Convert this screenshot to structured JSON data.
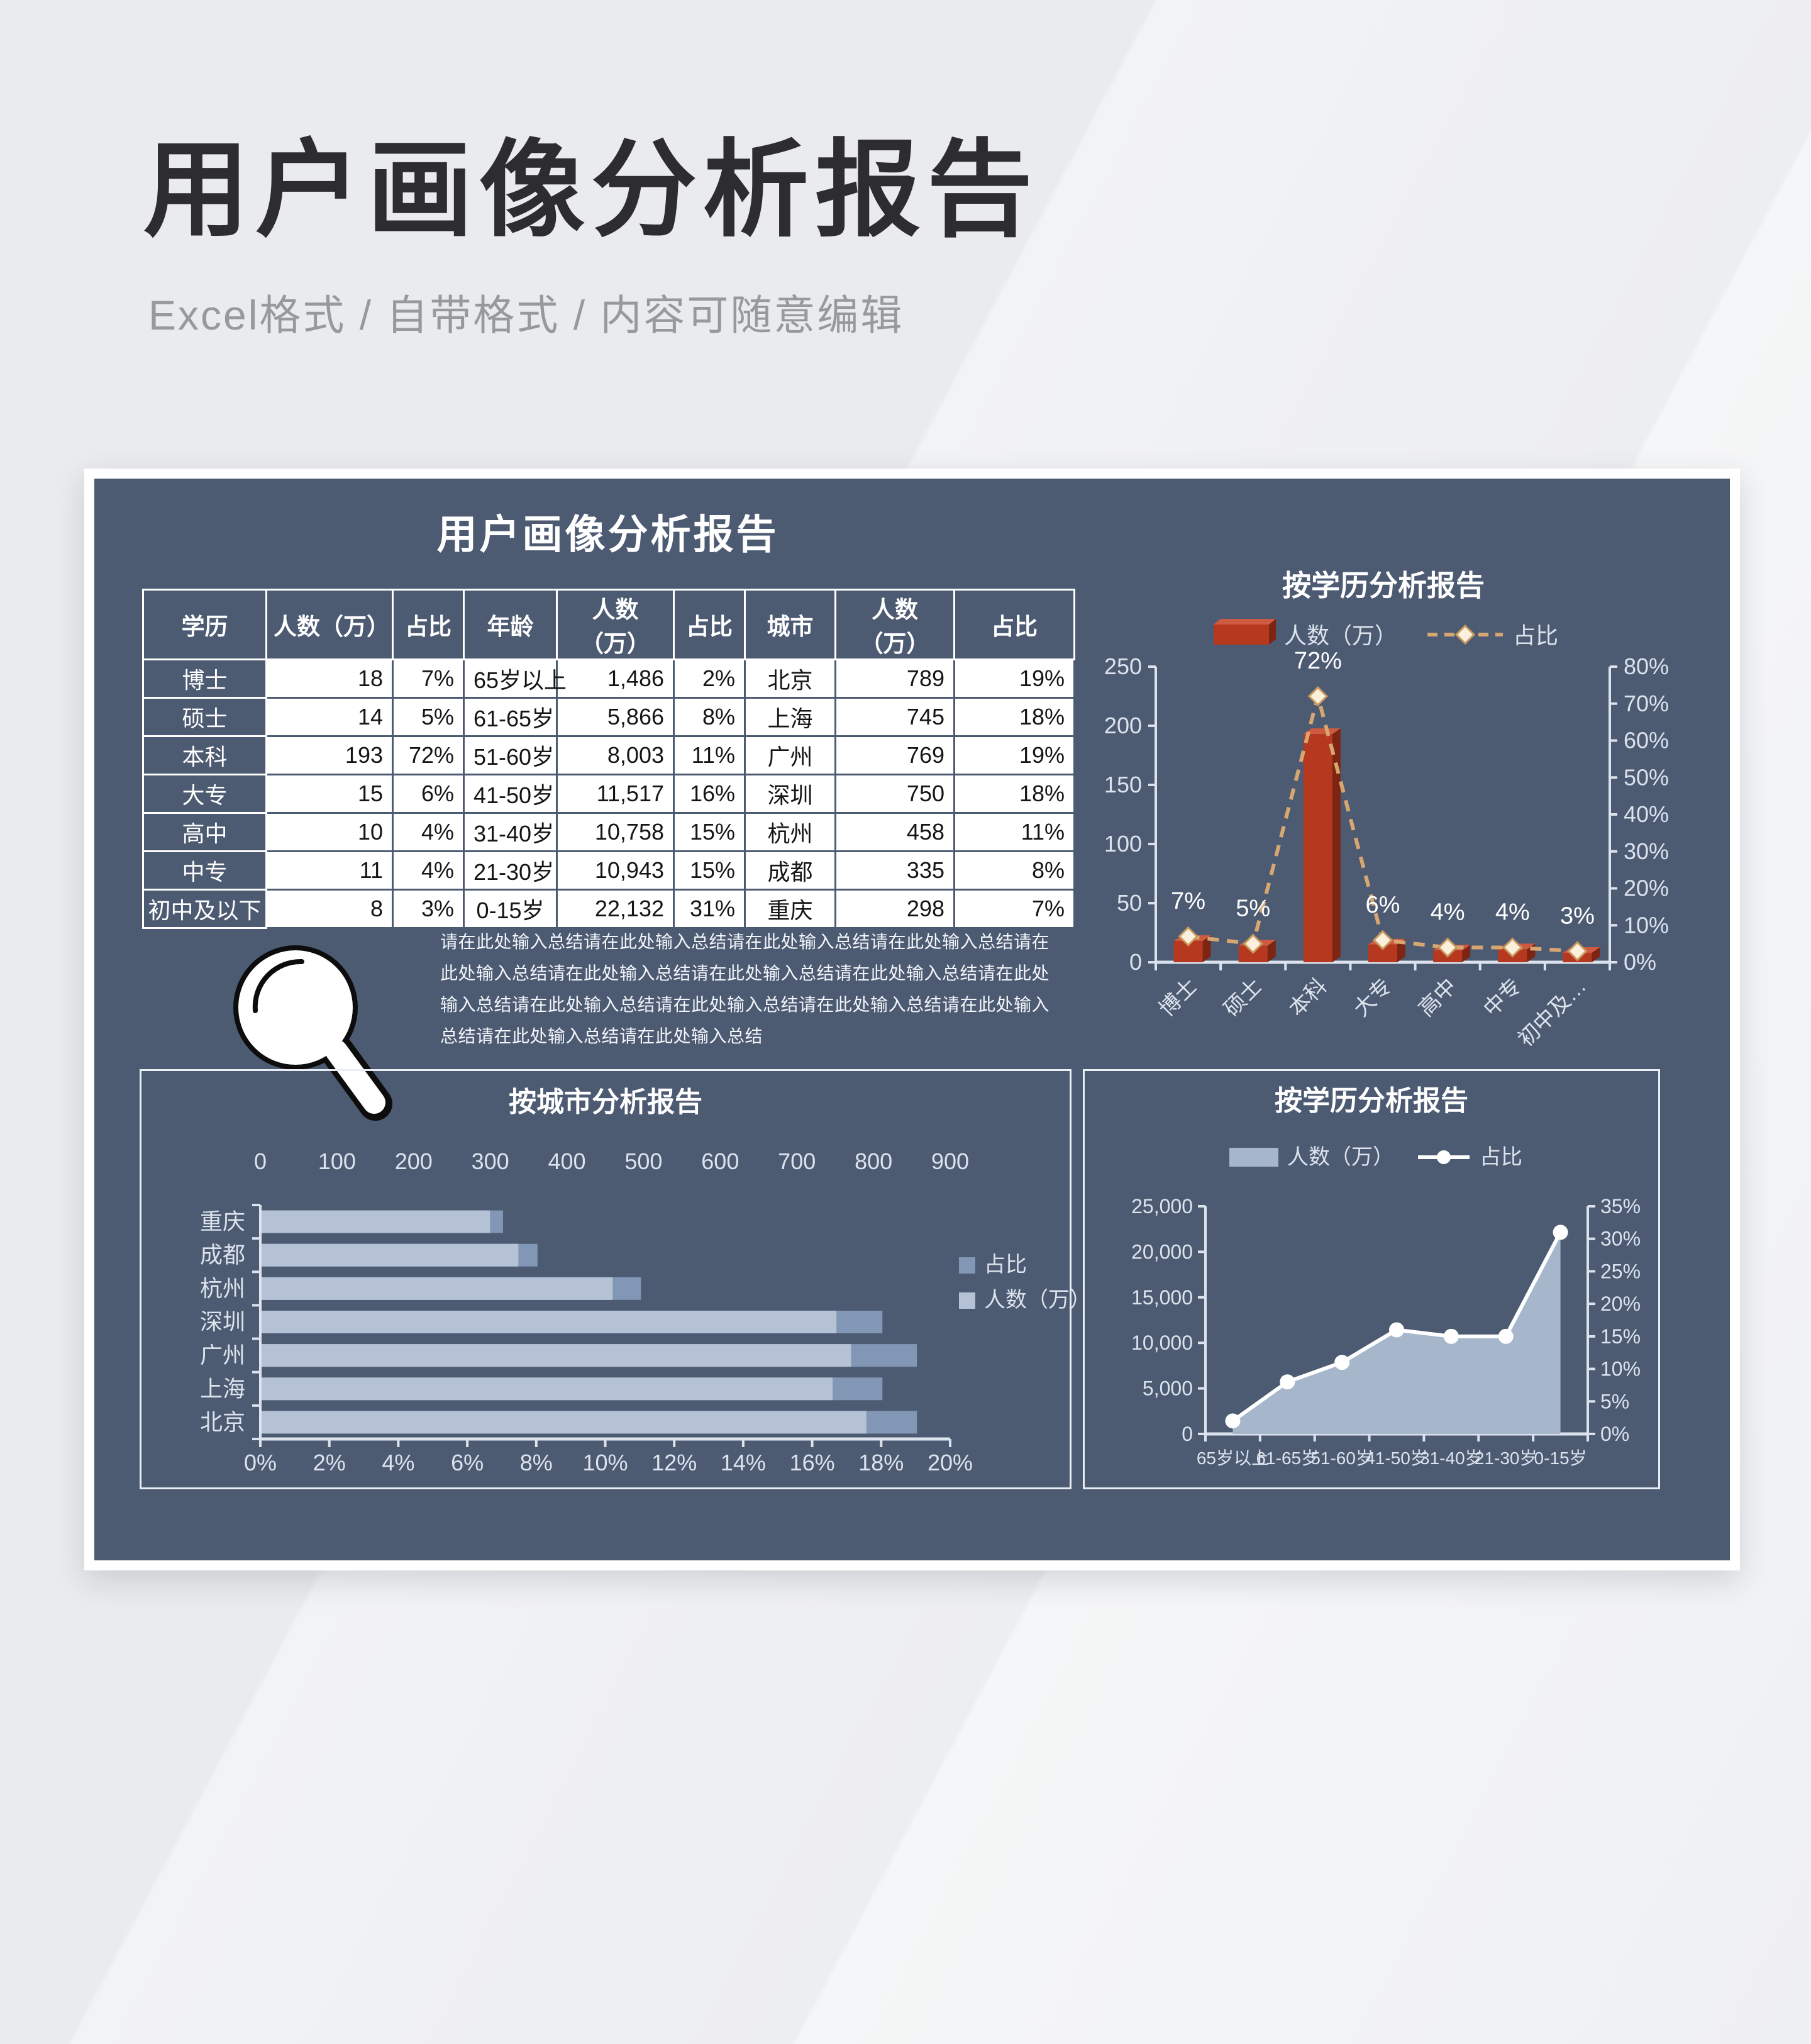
{
  "header": {
    "title": "用户画像分析报告",
    "subtitle": "Excel格式 / 自带格式 / 内容可随意编辑"
  },
  "panel": {
    "title": "用户画像分析报告",
    "summary": "请在此处输入总结请在此处输入总结请在此处输入总结请在此处输入总结请在此处输入总结请在此处输入总结请在此处输入总结请在此处输入总结请在此处输入总结请在此处输入总结请在此处输入总结请在此处输入总结请在此处输入总结请在此处输入总结请在此处输入总结",
    "summary_icon": "magnifier-icon"
  },
  "table": {
    "headers": [
      "学历",
      "人数（万）",
      "占比",
      "年龄",
      "人数（万）",
      "占比",
      "城市",
      "人数（万）",
      "占比"
    ],
    "rows": [
      [
        "博士",
        "18",
        "7%",
        "65岁以上",
        "1,486",
        "2%",
        "北京",
        "789",
        "19%"
      ],
      [
        "硕士",
        "14",
        "5%",
        "61-65岁",
        "5,866",
        "8%",
        "上海",
        "745",
        "18%"
      ],
      [
        "本科",
        "193",
        "72%",
        "51-60岁",
        "8,003",
        "11%",
        "广州",
        "769",
        "19%"
      ],
      [
        "大专",
        "15",
        "6%",
        "41-50岁",
        "11,517",
        "16%",
        "深圳",
        "750",
        "18%"
      ],
      [
        "高中",
        "10",
        "4%",
        "31-40岁",
        "10,758",
        "15%",
        "杭州",
        "458",
        "11%"
      ],
      [
        "中专",
        "11",
        "4%",
        "21-30岁",
        "10,943",
        "15%",
        "成都",
        "335",
        "8%"
      ],
      [
        "初中及以下",
        "8",
        "3%",
        "0-15岁",
        "22,132",
        "31%",
        "重庆",
        "298",
        "7%"
      ]
    ]
  },
  "colors": {
    "panel": "#4c5a72",
    "bar_red": "#b5381f",
    "bar_red_side": "#7d2412",
    "bar_red_top": "#ce5b41",
    "line_tan": "#d8a671",
    "diamond_fill": "#faf0dc",
    "diamond_stroke": "#c89a5e",
    "bar_light": "#b5c2d5",
    "bar_dark": "#8297b5",
    "area_fill": "#a6b6cb",
    "line_white": "#ffffff",
    "axis_text": "#dce3ed",
    "title_text": "#ffffff"
  },
  "chart_data": [
    {
      "id": "edu_combo",
      "type": "bar",
      "subtype": "bar+line combo, dual axis",
      "title": "按学历分析报告",
      "categories": [
        "博士",
        "硕士",
        "本科",
        "大专",
        "高中",
        "中专",
        "初中及…"
      ],
      "series": [
        {
          "name": "人数（万）",
          "chart": "bar",
          "axis": "left",
          "values": [
            18,
            14,
            193,
            15,
            10,
            11,
            8
          ]
        },
        {
          "name": "占比",
          "chart": "line",
          "axis": "right",
          "values": [
            7,
            5,
            72,
            6,
            4,
            4,
            3
          ],
          "labels": [
            "7%",
            "5%",
            "72%",
            "6%",
            "4%",
            "4%",
            "3%"
          ]
        }
      ],
      "left_axis": {
        "min": 0,
        "max": 250,
        "ticks": [
          "0",
          "50",
          "100",
          "150",
          "200",
          "250"
        ]
      },
      "right_axis": {
        "min": 0,
        "max": 80,
        "ticks": [
          "0%",
          "10%",
          "20%",
          "30%",
          "40%",
          "50%",
          "60%",
          "70%",
          "80%"
        ]
      },
      "legend_position": "top",
      "grid": false
    },
    {
      "id": "city_bars",
      "type": "bar",
      "subtype": "horizontal bars, dual axis",
      "title": "按城市分析报告",
      "categories": [
        "重庆",
        "成都",
        "杭州",
        "深圳",
        "广州",
        "上海",
        "北京"
      ],
      "series": [
        {
          "name": "占比",
          "axis": "bottom",
          "values": [
            7,
            8,
            11,
            18,
            19,
            18,
            19
          ]
        },
        {
          "name": "人数（万）",
          "axis": "top",
          "values": [
            298,
            335,
            458,
            750,
            769,
            745,
            789
          ]
        }
      ],
      "top_axis": {
        "min": 0,
        "max": 900,
        "ticks": [
          "0",
          "100",
          "200",
          "300",
          "400",
          "500",
          "600",
          "700",
          "800",
          "900"
        ]
      },
      "bottom_axis": {
        "min": 0,
        "max": 20,
        "ticks": [
          "0%",
          "2%",
          "4%",
          "6%",
          "8%",
          "10%",
          "12%",
          "14%",
          "16%",
          "18%",
          "20%"
        ]
      },
      "legend_position": "right",
      "grid": false
    },
    {
      "id": "age_area",
      "type": "area",
      "subtype": "area+line combo, dual axis",
      "title": "按学历分析报告",
      "categories": [
        "65岁以上",
        "61-65岁",
        "51-60岁",
        "41-50岁",
        "31-40岁",
        "21-30岁",
        "0-15岁"
      ],
      "series": [
        {
          "name": "人数（万）",
          "chart": "area",
          "axis": "left",
          "values": [
            1486,
            5866,
            8003,
            11517,
            10758,
            10943,
            22132
          ]
        },
        {
          "name": "占比",
          "chart": "line",
          "axis": "right",
          "values": [
            2,
            8,
            11,
            16,
            15,
            15,
            31
          ]
        }
      ],
      "left_axis": {
        "min": 0,
        "max": 25000,
        "ticks": [
          "0",
          "5,000",
          "10,000",
          "15,000",
          "20,000",
          "25,000"
        ]
      },
      "right_axis": {
        "min": 0,
        "max": 35,
        "ticks": [
          "0%",
          "5%",
          "10%",
          "15%",
          "20%",
          "25%",
          "30%",
          "35%"
        ]
      },
      "legend_position": "top",
      "grid": false
    }
  ]
}
